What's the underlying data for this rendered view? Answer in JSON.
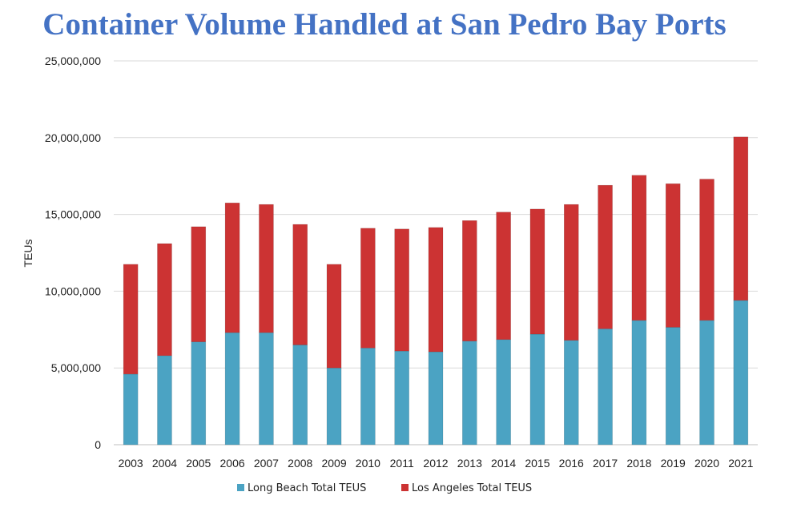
{
  "chart_data": {
    "type": "bar",
    "stacked": true,
    "title": "Container Volume Handled at San Pedro Bay Ports",
    "xlabel": "",
    "ylabel": "TEUs",
    "ylim": [
      0,
      25000000
    ],
    "yticks": [
      0,
      5000000,
      10000000,
      15000000,
      20000000,
      25000000
    ],
    "ytick_labels": [
      "0",
      "5,000,000",
      "10,000,000",
      "15,000,000",
      "20,000,000",
      "25,000,000"
    ],
    "grid": true,
    "legend_position": "bottom",
    "categories": [
      "2003",
      "2004",
      "2005",
      "2006",
      "2007",
      "2008",
      "2009",
      "2010",
      "2011",
      "2012",
      "2013",
      "2014",
      "2015",
      "2016",
      "2017",
      "2018",
      "2019",
      "2020",
      "2021"
    ],
    "series": [
      {
        "name": "Long Beach Total TEUS",
        "color": "#4ba3c3",
        "values": [
          4600000,
          5800000,
          6700000,
          7300000,
          7300000,
          6500000,
          5000000,
          6300000,
          6100000,
          6050000,
          6750000,
          6850000,
          7200000,
          6800000,
          7550000,
          8100000,
          7650000,
          8100000,
          9400000
        ]
      },
      {
        "name": "Los Angeles Total TEUS",
        "color": "#cc3333",
        "values": [
          7150000,
          7300000,
          7500000,
          8450000,
          8350000,
          7850000,
          6750000,
          7800000,
          7950000,
          8100000,
          7850000,
          8300000,
          8150000,
          8850000,
          9350000,
          9450000,
          9350000,
          9200000,
          10650000
        ]
      }
    ]
  }
}
